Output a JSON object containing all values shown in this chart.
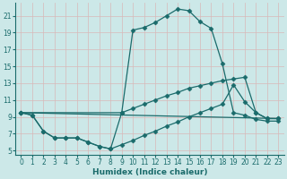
{
  "xlabel": "Humidex (Indice chaleur)",
  "bg_color": "#cce8e8",
  "line_color": "#1a6b6b",
  "xlim": [
    -0.5,
    23.5
  ],
  "ylim": [
    4.5,
    22.5
  ],
  "xticks": [
    0,
    1,
    2,
    3,
    4,
    5,
    6,
    7,
    8,
    9,
    10,
    11,
    12,
    13,
    14,
    15,
    16,
    17,
    18,
    19,
    20,
    21,
    22,
    23
  ],
  "yticks": [
    5,
    7,
    9,
    11,
    13,
    15,
    17,
    19,
    21
  ],
  "line1_x": [
    0,
    1,
    2,
    3,
    4,
    5,
    6,
    7,
    8,
    9,
    10,
    11,
    12,
    13,
    14,
    15,
    16,
    17,
    18,
    19,
    20,
    21,
    22,
    23
  ],
  "line1_y": [
    9.5,
    9.2,
    7.3,
    6.5,
    6.5,
    6.5,
    6.0,
    5.5,
    5.2,
    9.5,
    19.3,
    19.6,
    20.2,
    21.0,
    21.8,
    21.6,
    20.3,
    19.5,
    15.3,
    9.5,
    9.2,
    8.7,
    8.5,
    8.5
  ],
  "line2_x": [
    0,
    1,
    2,
    3,
    4,
    5,
    6,
    7,
    8,
    9,
    10,
    11,
    12,
    13,
    14,
    15,
    16,
    17,
    18,
    19,
    20,
    21,
    22,
    23
  ],
  "line2_y": [
    9.5,
    9.2,
    7.3,
    6.5,
    6.5,
    6.5,
    6.0,
    5.5,
    5.2,
    5.7,
    6.2,
    6.8,
    7.3,
    7.9,
    8.4,
    9.0,
    9.5,
    10.0,
    10.5,
    12.8,
    10.8,
    9.5,
    8.8,
    8.8
  ],
  "line3_x": [
    0,
    9,
    10,
    11,
    12,
    13,
    14,
    15,
    16,
    17,
    18,
    19,
    20,
    21,
    22,
    23
  ],
  "line3_y": [
    9.5,
    9.5,
    10.0,
    10.5,
    11.0,
    11.5,
    11.9,
    12.4,
    12.7,
    13.0,
    13.3,
    13.5,
    13.7,
    9.5,
    8.8,
    8.8
  ],
  "line4_x": [
    0,
    23
  ],
  "line4_y": [
    9.5,
    8.8
  ],
  "markersize": 2.5
}
